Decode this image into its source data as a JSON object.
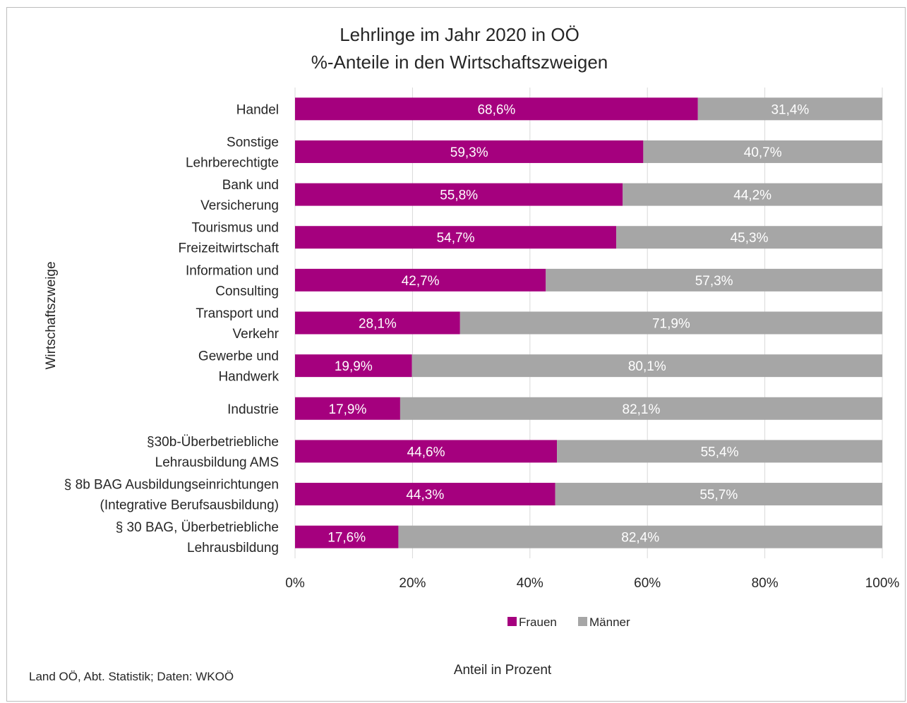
{
  "chart_data": {
    "type": "bar",
    "orientation": "horizontal",
    "stacked": "percent",
    "title_lines": [
      "Lehrlinge im Jahr 2020 in OÖ",
      "%-Anteile in den Wirtschaftszweigen"
    ],
    "ylabel": "Wirtschaftszweige",
    "xlabel": "Anteil in Prozent",
    "xlim": [
      0,
      100
    ],
    "x_ticks": [
      "0%",
      "20%",
      "40%",
      "60%",
      "80%",
      "100%"
    ],
    "grid": "vertical",
    "legend_position": "bottom",
    "categories": [
      [
        "Handel"
      ],
      [
        "Sonstige",
        "Lehrberechtigte"
      ],
      [
        "Bank und",
        "Versicherung"
      ],
      [
        "Tourismus und",
        "Freizeitwirtschaft"
      ],
      [
        "Information und",
        "Consulting"
      ],
      [
        "Transport und",
        "Verkehr"
      ],
      [
        "Gewerbe und",
        "Handwerk"
      ],
      [
        "Industrie"
      ],
      [
        "§30b-Überbetriebliche",
        "Lehrausbildung AMS"
      ],
      [
        "§ 8b BAG Ausbildungseinrichtungen",
        "(Integrative Berufsausbildung)"
      ],
      [
        "§ 30 BAG, Überbetriebliche",
        "Lehrausbildung"
      ]
    ],
    "series": [
      {
        "name": "Frauen",
        "color": "#a5007e",
        "values": [
          68.6,
          59.3,
          55.8,
          54.7,
          42.7,
          28.1,
          19.9,
          17.9,
          44.6,
          44.3,
          17.6
        ],
        "labels": [
          "68,6%",
          "59,3%",
          "55,8%",
          "54,7%",
          "42,7%",
          "28,1%",
          "19,9%",
          "17,9%",
          "44,6%",
          "44,3%",
          "17,6%"
        ]
      },
      {
        "name": "Männer",
        "color": "#a6a6a6",
        "values": [
          31.4,
          40.7,
          44.2,
          45.3,
          57.3,
          71.9,
          80.1,
          82.1,
          55.4,
          55.7,
          82.4
        ],
        "labels": [
          "31,4%",
          "40,7%",
          "44,2%",
          "45,3%",
          "57,3%",
          "71,9%",
          "80,1%",
          "82,1%",
          "55,4%",
          "55,7%",
          "82,4%"
        ]
      }
    ]
  },
  "source_note": "Land OÖ, Abt. Statistik; Daten: WKOÖ"
}
